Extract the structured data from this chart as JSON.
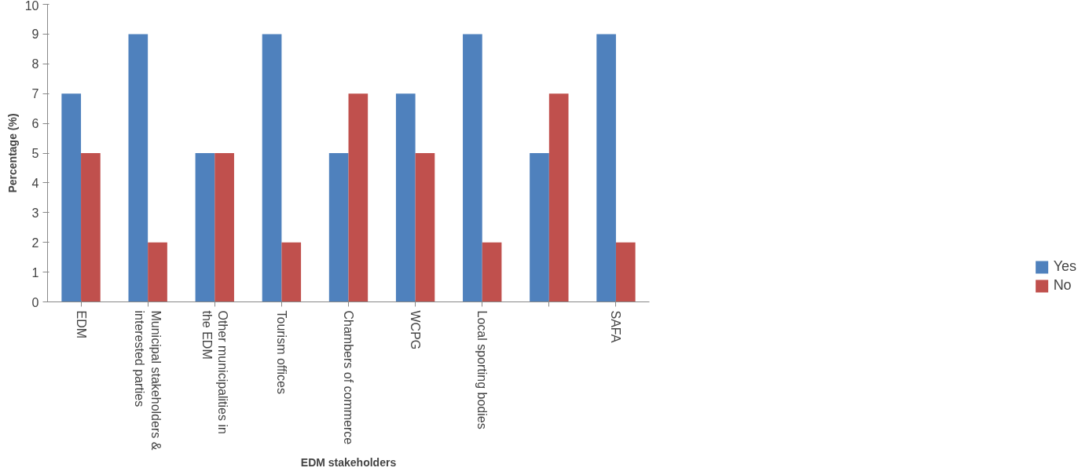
{
  "chart_data": {
    "type": "bar",
    "xlabel": "EDM stakeholders",
    "ylabel": "Percentage (%)",
    "categories": [
      "EDM",
      "Municipal stakeholders & interested parties",
      "Other municipalities in the EDM",
      "Tourism offices",
      "Chambers of commerce",
      "WCPG",
      "Local sporting bodies",
      null,
      "SAFA"
    ],
    "series": [
      {
        "name": "Yes",
        "color": "#4f81bd",
        "values": [
          7,
          9,
          5,
          9,
          5,
          7,
          9,
          5,
          9
        ]
      },
      {
        "name": "No",
        "color": "#c0504d",
        "values": [
          5,
          2,
          5,
          2,
          7,
          5,
          2,
          7,
          2
        ]
      }
    ],
    "ylim": [
      0,
      10
    ],
    "yticks": [
      0,
      1,
      2,
      3,
      4,
      5,
      6,
      7,
      8,
      9,
      10
    ],
    "grid": false,
    "legend": "bottom right"
  }
}
